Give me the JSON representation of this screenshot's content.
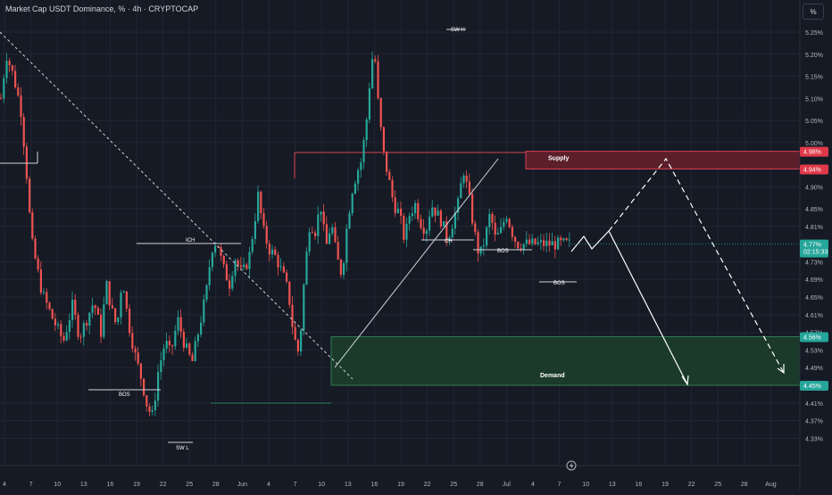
{
  "header": {
    "symbol_line": "Market Cap USDT Dominance, % · 4h · CRYPTOCAP"
  },
  "axis_toggle": {
    "label": "%"
  },
  "colors": {
    "background": "#161a25",
    "grid": "#222633",
    "up": "#26a69a",
    "down": "#ef5350",
    "supply_fill": "#5c1f2a",
    "supply_border": "#d9404f",
    "demand_fill": "#1b3a2a",
    "demand_border": "#2e7d4f",
    "price_tag": "#26a69a",
    "supply_tag": "#e03a4a",
    "demand_tag": "#26a69a"
  },
  "price_tags": {
    "supply_top": "4.98%",
    "supply_bottom": "4.94%",
    "current": "4.77%",
    "countdown": "02:15:33",
    "demand_top": "4.56%",
    "demand_bottom": "4.45%"
  },
  "zone_labels": {
    "supply": "Supply",
    "demand": "Demand"
  },
  "annotations": {
    "sw_h": "SW H",
    "sw_l": "SW L",
    "ich": "ICH",
    "ch": "CH",
    "bos_left": "BOS",
    "bos_mid": "BOS",
    "bos_right": "BOS"
  },
  "chart_data": {
    "type": "candlestick",
    "title": "Market Cap USDT Dominance, % · 4h · CRYPTOCAP",
    "xlabel": "",
    "ylabel": "%",
    "ylim": [
      4.31,
      5.27
    ],
    "y_ticks": [
      "5.25%",
      "5.20%",
      "5.15%",
      "5.10%",
      "5.05%",
      "5.00%",
      "4.90%",
      "4.85%",
      "4.81%",
      "4.73%",
      "4.69%",
      "4.65%",
      "4.61%",
      "4.57%",
      "4.53%",
      "4.49%",
      "4.41%",
      "4.37%",
      "4.33%"
    ],
    "x_ticks": [
      "4",
      "7",
      "10",
      "13",
      "16",
      "19",
      "22",
      "25",
      "28",
      "Jun",
      "4",
      "7",
      "10",
      "13",
      "16",
      "19",
      "22",
      "25",
      "28",
      "Jul",
      "4",
      "7",
      "10",
      "13",
      "16",
      "19",
      "22",
      "25",
      "28",
      "Aug"
    ],
    "path_points": [
      [
        5.1,
        0
      ],
      [
        5.2,
        6
      ],
      [
        5.15,
        14
      ],
      [
        5.08,
        22
      ],
      [
        4.95,
        28
      ],
      [
        4.78,
        34
      ],
      [
        4.66,
        46
      ],
      [
        4.6,
        58
      ],
      [
        4.55,
        70
      ],
      [
        4.63,
        80
      ],
      [
        4.56,
        88
      ],
      [
        4.6,
        96
      ],
      [
        4.64,
        104
      ],
      [
        4.57,
        112
      ],
      [
        4.68,
        118
      ],
      [
        4.62,
        124
      ],
      [
        4.58,
        130
      ],
      [
        4.7,
        136
      ],
      [
        4.6,
        142
      ],
      [
        4.52,
        150
      ],
      [
        4.46,
        158
      ],
      [
        4.4,
        164
      ],
      [
        4.38,
        170
      ],
      [
        4.48,
        176
      ],
      [
        4.55,
        184
      ],
      [
        4.52,
        190
      ],
      [
        4.6,
        198
      ],
      [
        4.54,
        206
      ],
      [
        4.5,
        214
      ],
      [
        4.58,
        222
      ],
      [
        4.66,
        230
      ],
      [
        4.76,
        236
      ],
      [
        4.78,
        242
      ],
      [
        4.72,
        248
      ],
      [
        4.68,
        256
      ],
      [
        4.74,
        262
      ],
      [
        4.7,
        270
      ],
      [
        4.74,
        278
      ],
      [
        4.82,
        284
      ],
      [
        4.88,
        288
      ],
      [
        4.8,
        294
      ],
      [
        4.76,
        300
      ],
      [
        4.74,
        308
      ],
      [
        4.7,
        316
      ],
      [
        4.66,
        322
      ],
      [
        4.56,
        328
      ],
      [
        4.52,
        334
      ],
      [
        4.7,
        340
      ],
      [
        4.82,
        346
      ],
      [
        4.8,
        352
      ],
      [
        4.86,
        358
      ],
      [
        4.76,
        364
      ],
      [
        4.82,
        370
      ],
      [
        4.74,
        376
      ],
      [
        4.7,
        382
      ],
      [
        4.82,
        388
      ],
      [
        4.9,
        394
      ],
      [
        4.94,
        400
      ],
      [
        4.96,
        404
      ],
      [
        5.06,
        410
      ],
      [
        5.16,
        414
      ],
      [
        5.22,
        418
      ],
      [
        5.1,
        422
      ],
      [
        4.98,
        428
      ],
      [
        4.92,
        434
      ],
      [
        4.86,
        440
      ],
      [
        4.84,
        446
      ],
      [
        4.78,
        452
      ],
      [
        4.84,
        458
      ],
      [
        4.86,
        464
      ],
      [
        4.82,
        470
      ],
      [
        4.8,
        476
      ],
      [
        4.86,
        482
      ],
      [
        4.84,
        488
      ],
      [
        4.82,
        494
      ],
      [
        4.78,
        500
      ],
      [
        4.82,
        506
      ],
      [
        4.86,
        512
      ],
      [
        4.94,
        518
      ],
      [
        4.88,
        524
      ],
      [
        4.8,
        530
      ],
      [
        4.74,
        536
      ],
      [
        4.78,
        542
      ],
      [
        4.84,
        548
      ],
      [
        4.78,
        554
      ],
      [
        4.8,
        560
      ],
      [
        4.84,
        566
      ],
      [
        4.8,
        572
      ],
      [
        4.77,
        578
      ]
    ],
    "zones": [
      {
        "name": "Supply",
        "top": 4.98,
        "bottom": 4.94
      },
      {
        "name": "Demand",
        "top": 4.56,
        "bottom": 4.45
      }
    ],
    "grid": true,
    "legend": "none"
  }
}
